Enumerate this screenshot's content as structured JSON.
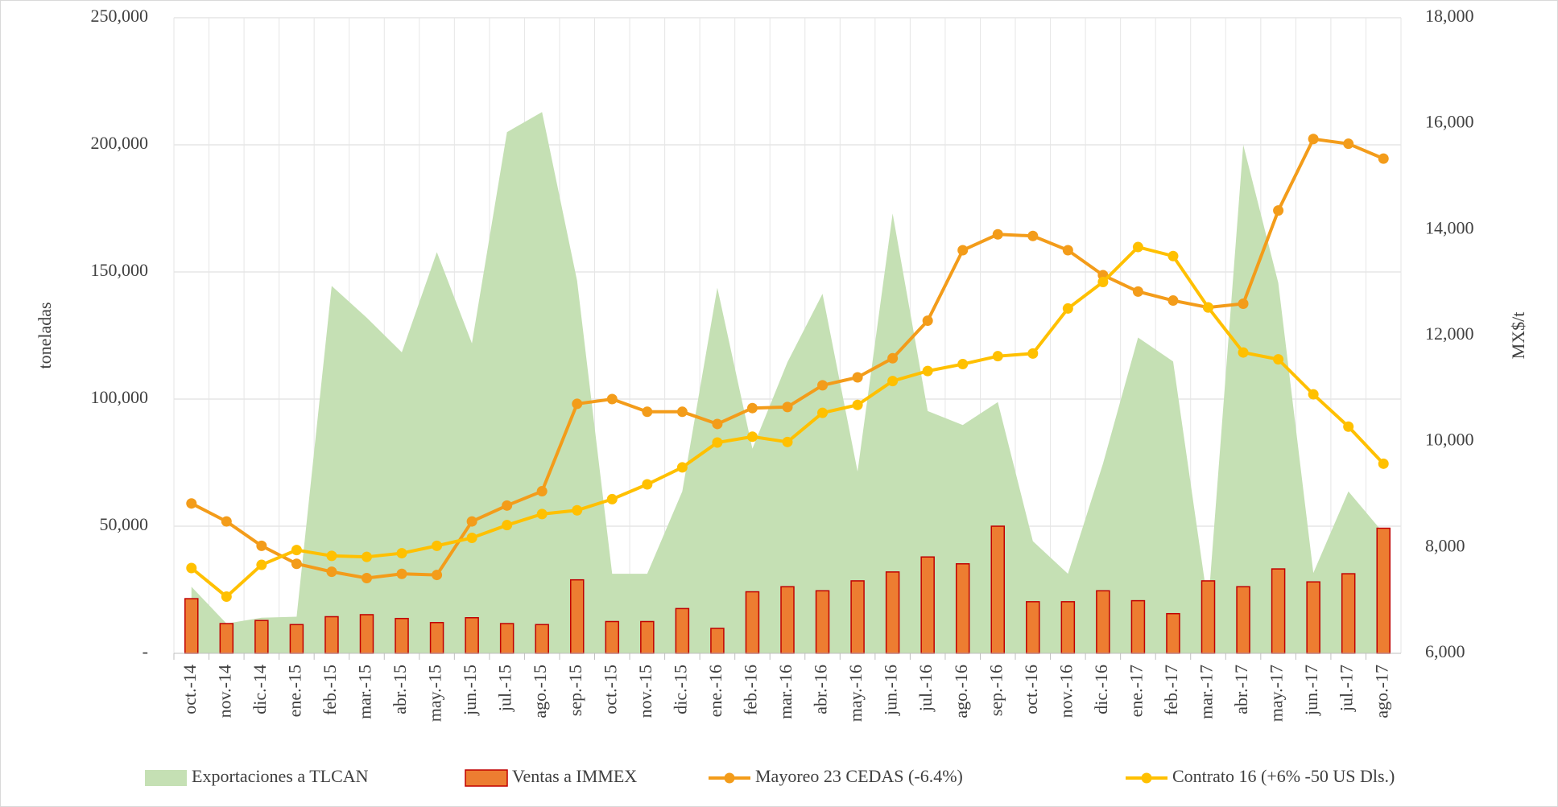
{
  "chart_data": {
    "type": "combo",
    "categories": [
      "oct.-14",
      "nov.-14",
      "dic.-14",
      "ene.-15",
      "feb.-15",
      "mar.-15",
      "abr.-15",
      "may.-15",
      "jun.-15",
      "jul.-15",
      "ago.-15",
      "sep.-15",
      "oct.-15",
      "nov.-15",
      "dic.-15",
      "ene.-16",
      "feb.-16",
      "mar.-16",
      "abr.-16",
      "may.-16",
      "jun.-16",
      "jul.-16",
      "ago.-16",
      "sep.-16",
      "oct.-16",
      "nov.-16",
      "dic.-16",
      "ene.-17",
      "feb.-17",
      "mar.-17",
      "abr.-17",
      "may.-17",
      "jun.-17",
      "jul.-17",
      "ago.-17"
    ],
    "ylabel": "toneladas",
    "y2label": "MX$/t",
    "ylim": [
      0,
      250000
    ],
    "yticks": [
      {
        "value": 0,
        "label": "-"
      },
      {
        "value": 50000,
        "label": "50,000"
      },
      {
        "value": 100000,
        "label": "100,000"
      },
      {
        "value": 150000,
        "label": "150,000"
      },
      {
        "value": 200000,
        "label": "200,000"
      },
      {
        "value": 250000,
        "label": "250,000"
      }
    ],
    "y2lim": [
      6000,
      18000
    ],
    "y2ticks": [
      {
        "value": 6000,
        "label": "6,000"
      },
      {
        "value": 8000,
        "label": "8,000"
      },
      {
        "value": 10000,
        "label": "10,000"
      },
      {
        "value": 12000,
        "label": "12,000"
      },
      {
        "value": 14000,
        "label": "14,000"
      },
      {
        "value": 16000,
        "label": "16,000"
      },
      {
        "value": 18000,
        "label": "18,000"
      }
    ],
    "grid": true,
    "series": [
      {
        "name": "Exportaciones a TLCAN",
        "kind": "area",
        "color": "#c5e0b4",
        "values": [
          26200,
          11700,
          14000,
          14400,
          144500,
          132000,
          118400,
          157800,
          121900,
          205000,
          212900,
          146500,
          31300,
          31300,
          63700,
          143800,
          80500,
          114500,
          141400,
          71500,
          173000,
          95300,
          89800,
          98800,
          44100,
          31300,
          74600,
          124200,
          114800,
          18800,
          200000,
          145700,
          31600,
          63700,
          47300
        ]
      },
      {
        "name": "Ventas a IMMEX",
        "kind": "bar",
        "color": "#ed7d31",
        "edge": "#c00000",
        "values": [
          21500,
          11700,
          12900,
          11300,
          14400,
          15200,
          13700,
          12100,
          14000,
          11700,
          11300,
          28900,
          12500,
          12500,
          17600,
          9800,
          24200,
          26200,
          24600,
          28500,
          32000,
          37900,
          35200,
          50000,
          20300,
          20300,
          24600,
          20700,
          15600,
          28500,
          26200,
          33200,
          28100,
          31300,
          49200
        ]
      },
      {
        "name": "Mayoreo 23 CEDAS (-6.4%)",
        "kind": "line",
        "axis": "y2",
        "color": "#f39c1a",
        "values": [
          8830,
          8490,
          8030,
          7690,
          7540,
          7420,
          7500,
          7480,
          8490,
          8790,
          9060,
          10710,
          10800,
          10560,
          10560,
          10330,
          10630,
          10650,
          11060,
          11210,
          11570,
          12280,
          13610,
          13910,
          13880,
          13610,
          13140,
          12830,
          12660,
          12530,
          12600,
          14360,
          15710,
          15620,
          15340
        ]
      },
      {
        "name": "Contrato 16 (+6% -50 US Dls.)",
        "kind": "line",
        "axis": "y2",
        "color": "#ffc000",
        "values": [
          7610,
          7070,
          7670,
          7950,
          7840,
          7820,
          7890,
          8030,
          8180,
          8420,
          8630,
          8700,
          8910,
          9190,
          9510,
          9980,
          10090,
          9990,
          10540,
          10690,
          11140,
          11330,
          11460,
          11610,
          11660,
          12510,
          13010,
          13670,
          13500,
          12530,
          11680,
          11550,
          10890,
          10280,
          9580
        ]
      }
    ]
  }
}
